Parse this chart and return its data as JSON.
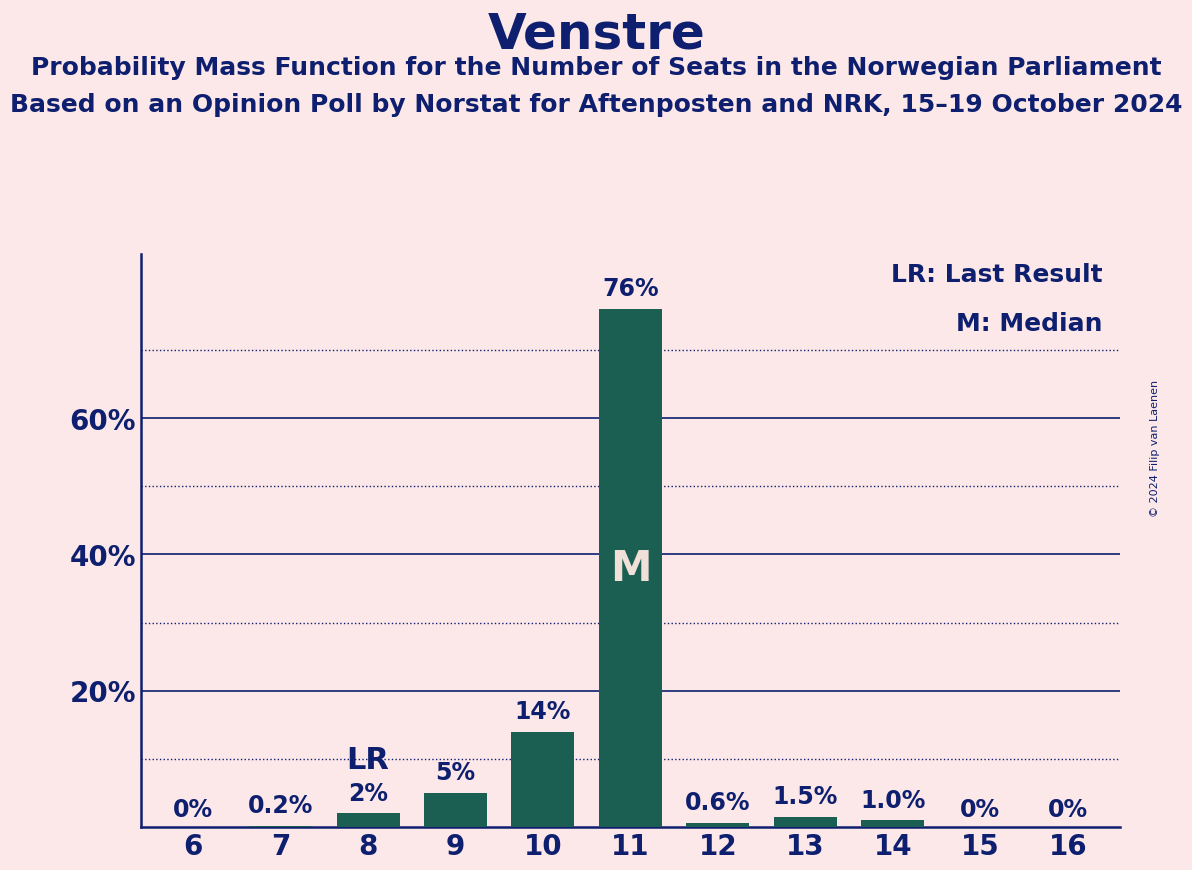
{
  "title": "Venstre",
  "subtitle1": "Probability Mass Function for the Number of Seats in the Norwegian Parliament",
  "subtitle2": "Based on an Opinion Poll by Norstat for Aftenposten and NRK, 15–19 October 2024",
  "copyright": "© 2024 Filip van Laenen",
  "categories": [
    6,
    7,
    8,
    9,
    10,
    11,
    12,
    13,
    14,
    15,
    16
  ],
  "values": [
    0.0,
    0.2,
    2.0,
    5.0,
    14.0,
    76.0,
    0.6,
    1.5,
    1.0,
    0.0,
    0.0
  ],
  "bar_labels": [
    "0%",
    "0.2%",
    "2%",
    "5%",
    "14%",
    "76%",
    "0.6%",
    "1.5%",
    "1.0%",
    "0%",
    "0%"
  ],
  "bar_color": "#1b5e52",
  "background_color": "#fce8e8",
  "text_color": "#0d1f6e",
  "lr_seat": 8,
  "lr_index": 2,
  "median_seat": 11,
  "median_index": 5,
  "ylim": [
    0,
    84
  ],
  "yticks": [
    20,
    40,
    60
  ],
  "ytick_labels": [
    "20%",
    "40%",
    "60%"
  ],
  "solid_lines": [
    20,
    40,
    60
  ],
  "dotted_lines": [
    10,
    30,
    50,
    70
  ],
  "legend_lr": "LR: Last Result",
  "legend_m": "M: Median",
  "title_fontsize": 36,
  "subtitle_fontsize": 18,
  "bar_label_fontsize": 17,
  "axis_label_fontsize": 20,
  "legend_fontsize": 18,
  "m_fontsize": 30,
  "lr_fontsize": 22
}
